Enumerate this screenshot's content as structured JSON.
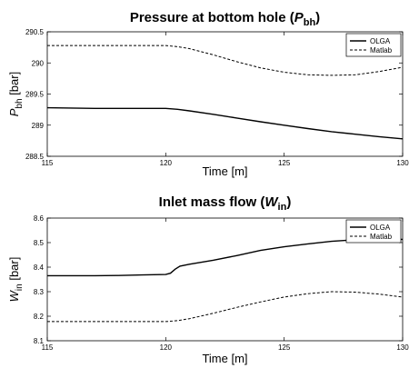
{
  "chart_data": [
    {
      "type": "line",
      "title": {
        "prefix": "Pressure at bottom hole (",
        "var": "P",
        "sub": "bh",
        "suffix": ")"
      },
      "ylabel": {
        "var": "P",
        "sub": "bh",
        "suffix": " [bar]"
      },
      "xlabel": "Time [m]",
      "xlim": [
        115,
        130
      ],
      "ylim": [
        288.5,
        290.5
      ],
      "xticks": [
        "115",
        "120",
        "125",
        "130"
      ],
      "yticks": [
        "288.5",
        "289",
        "289.5",
        "290",
        "290.5"
      ],
      "legend": {
        "position": "top-right",
        "entries": [
          "OLGA",
          "Matlab"
        ]
      },
      "grid": false,
      "series": [
        {
          "name": "OLGA",
          "style": "solid",
          "x": [
            115,
            116,
            117,
            118,
            119,
            120,
            120.5,
            121,
            122,
            123,
            124,
            125,
            126,
            127,
            128,
            129,
            130
          ],
          "y": [
            289.28,
            289.275,
            289.27,
            289.27,
            289.27,
            289.27,
            289.255,
            289.23,
            289.175,
            289.115,
            289.055,
            289.0,
            288.945,
            288.895,
            288.855,
            288.815,
            288.78
          ]
        },
        {
          "name": "Matlab",
          "style": "dashed",
          "x": [
            115,
            116,
            117,
            118,
            119,
            120,
            120.5,
            121,
            122,
            123,
            124,
            125,
            126,
            127,
            128,
            129,
            130
          ],
          "y": [
            290.28,
            290.28,
            290.28,
            290.28,
            290.28,
            290.28,
            290.26,
            290.23,
            290.13,
            290.02,
            289.92,
            289.85,
            289.81,
            289.8,
            289.81,
            289.86,
            289.93
          ]
        }
      ]
    },
    {
      "type": "line",
      "title": {
        "prefix": "Inlet mass flow (",
        "var": "W",
        "sub": "in",
        "suffix": ")"
      },
      "ylabel": {
        "var": "W",
        "sub": "in",
        "suffix": " [bar]"
      },
      "xlabel": "Time [m]",
      "xlim": [
        115,
        130
      ],
      "ylim": [
        8.1,
        8.6
      ],
      "xticks": [
        "115",
        "120",
        "125",
        "130"
      ],
      "yticks": [
        "8.1",
        "8.2",
        "8.3",
        "8.4",
        "8.5",
        "8.6"
      ],
      "legend": {
        "position": "top-right",
        "entries": [
          "OLGA",
          "Matlab"
        ]
      },
      "grid": false,
      "series": [
        {
          "name": "OLGA",
          "style": "solid",
          "x": [
            115,
            116,
            117,
            118,
            119,
            120,
            120.2,
            120.4,
            120.6,
            121,
            122,
            123,
            124,
            125,
            126,
            127,
            128,
            129,
            130
          ],
          "y": [
            8.365,
            8.365,
            8.365,
            8.366,
            8.368,
            8.37,
            8.375,
            8.392,
            8.404,
            8.412,
            8.428,
            8.447,
            8.468,
            8.483,
            8.495,
            8.505,
            8.512,
            8.515,
            8.513
          ]
        },
        {
          "name": "Matlab",
          "style": "dashed",
          "x": [
            115,
            116,
            117,
            118,
            119,
            120,
            120.5,
            121,
            122,
            123,
            124,
            125,
            126,
            127,
            128,
            129,
            130
          ],
          "y": [
            8.178,
            8.178,
            8.178,
            8.178,
            8.178,
            8.178,
            8.182,
            8.19,
            8.212,
            8.236,
            8.258,
            8.278,
            8.292,
            8.3,
            8.298,
            8.29,
            8.278
          ]
        }
      ]
    }
  ]
}
